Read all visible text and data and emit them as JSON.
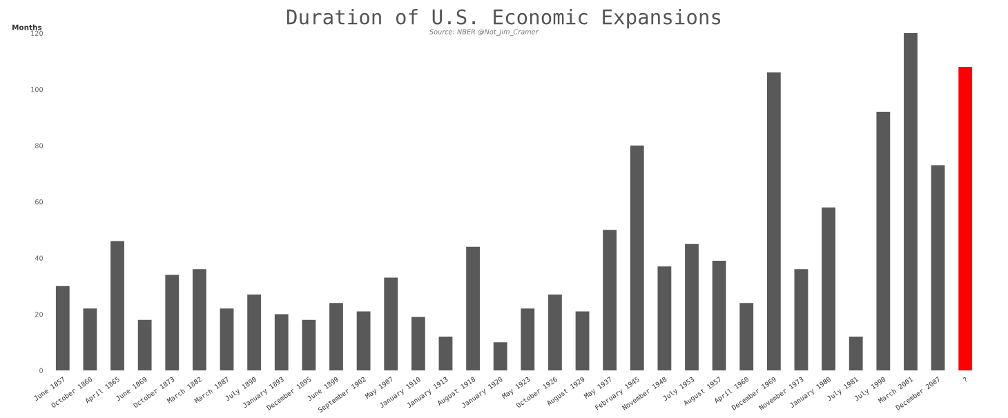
{
  "chart_data": {
    "type": "bar",
    "title": "Duration of U.S. Economic Expansions",
    "subtitle": "Source: NBER @Not_Jim_Cramer",
    "ylabel": "Months",
    "categories": [
      "June 1857",
      "October 1860",
      "April 1865",
      "June 1869",
      "October 1873",
      "March 1882",
      "March 1887",
      "July 1890",
      "January 1893",
      "December 1895",
      "June 1899",
      "September 1902",
      "May 1907",
      "January 1910",
      "January 1913",
      "August 1918",
      "January 1920",
      "May 1923",
      "October 1926",
      "August 1929",
      "May 1937",
      "February 1945",
      "November 1948",
      "July 1953",
      "August 1957",
      "April 1960",
      "December 1969",
      "November 1973",
      "January 1980",
      "July 1981",
      "July 1990",
      "March 2001",
      "December 2007",
      "?"
    ],
    "values": [
      30,
      22,
      46,
      18,
      34,
      36,
      22,
      27,
      20,
      18,
      24,
      21,
      33,
      19,
      12,
      44,
      10,
      22,
      27,
      21,
      50,
      80,
      37,
      45,
      39,
      24,
      106,
      36,
      58,
      12,
      92,
      120,
      73,
      108
    ],
    "colors": [
      "#595959",
      "#595959",
      "#595959",
      "#595959",
      "#595959",
      "#595959",
      "#595959",
      "#595959",
      "#595959",
      "#595959",
      "#595959",
      "#595959",
      "#595959",
      "#595959",
      "#595959",
      "#595959",
      "#595959",
      "#595959",
      "#595959",
      "#595959",
      "#595959",
      "#595959",
      "#595959",
      "#595959",
      "#595959",
      "#595959",
      "#595959",
      "#595959",
      "#595959",
      "#595959",
      "#595959",
      "#595959",
      "#595959",
      "#ff0000"
    ],
    "ylim": [
      0,
      120
    ],
    "yticks": [
      0,
      20,
      40,
      60,
      80,
      100,
      120
    ],
    "grid": false,
    "legend": false
  }
}
